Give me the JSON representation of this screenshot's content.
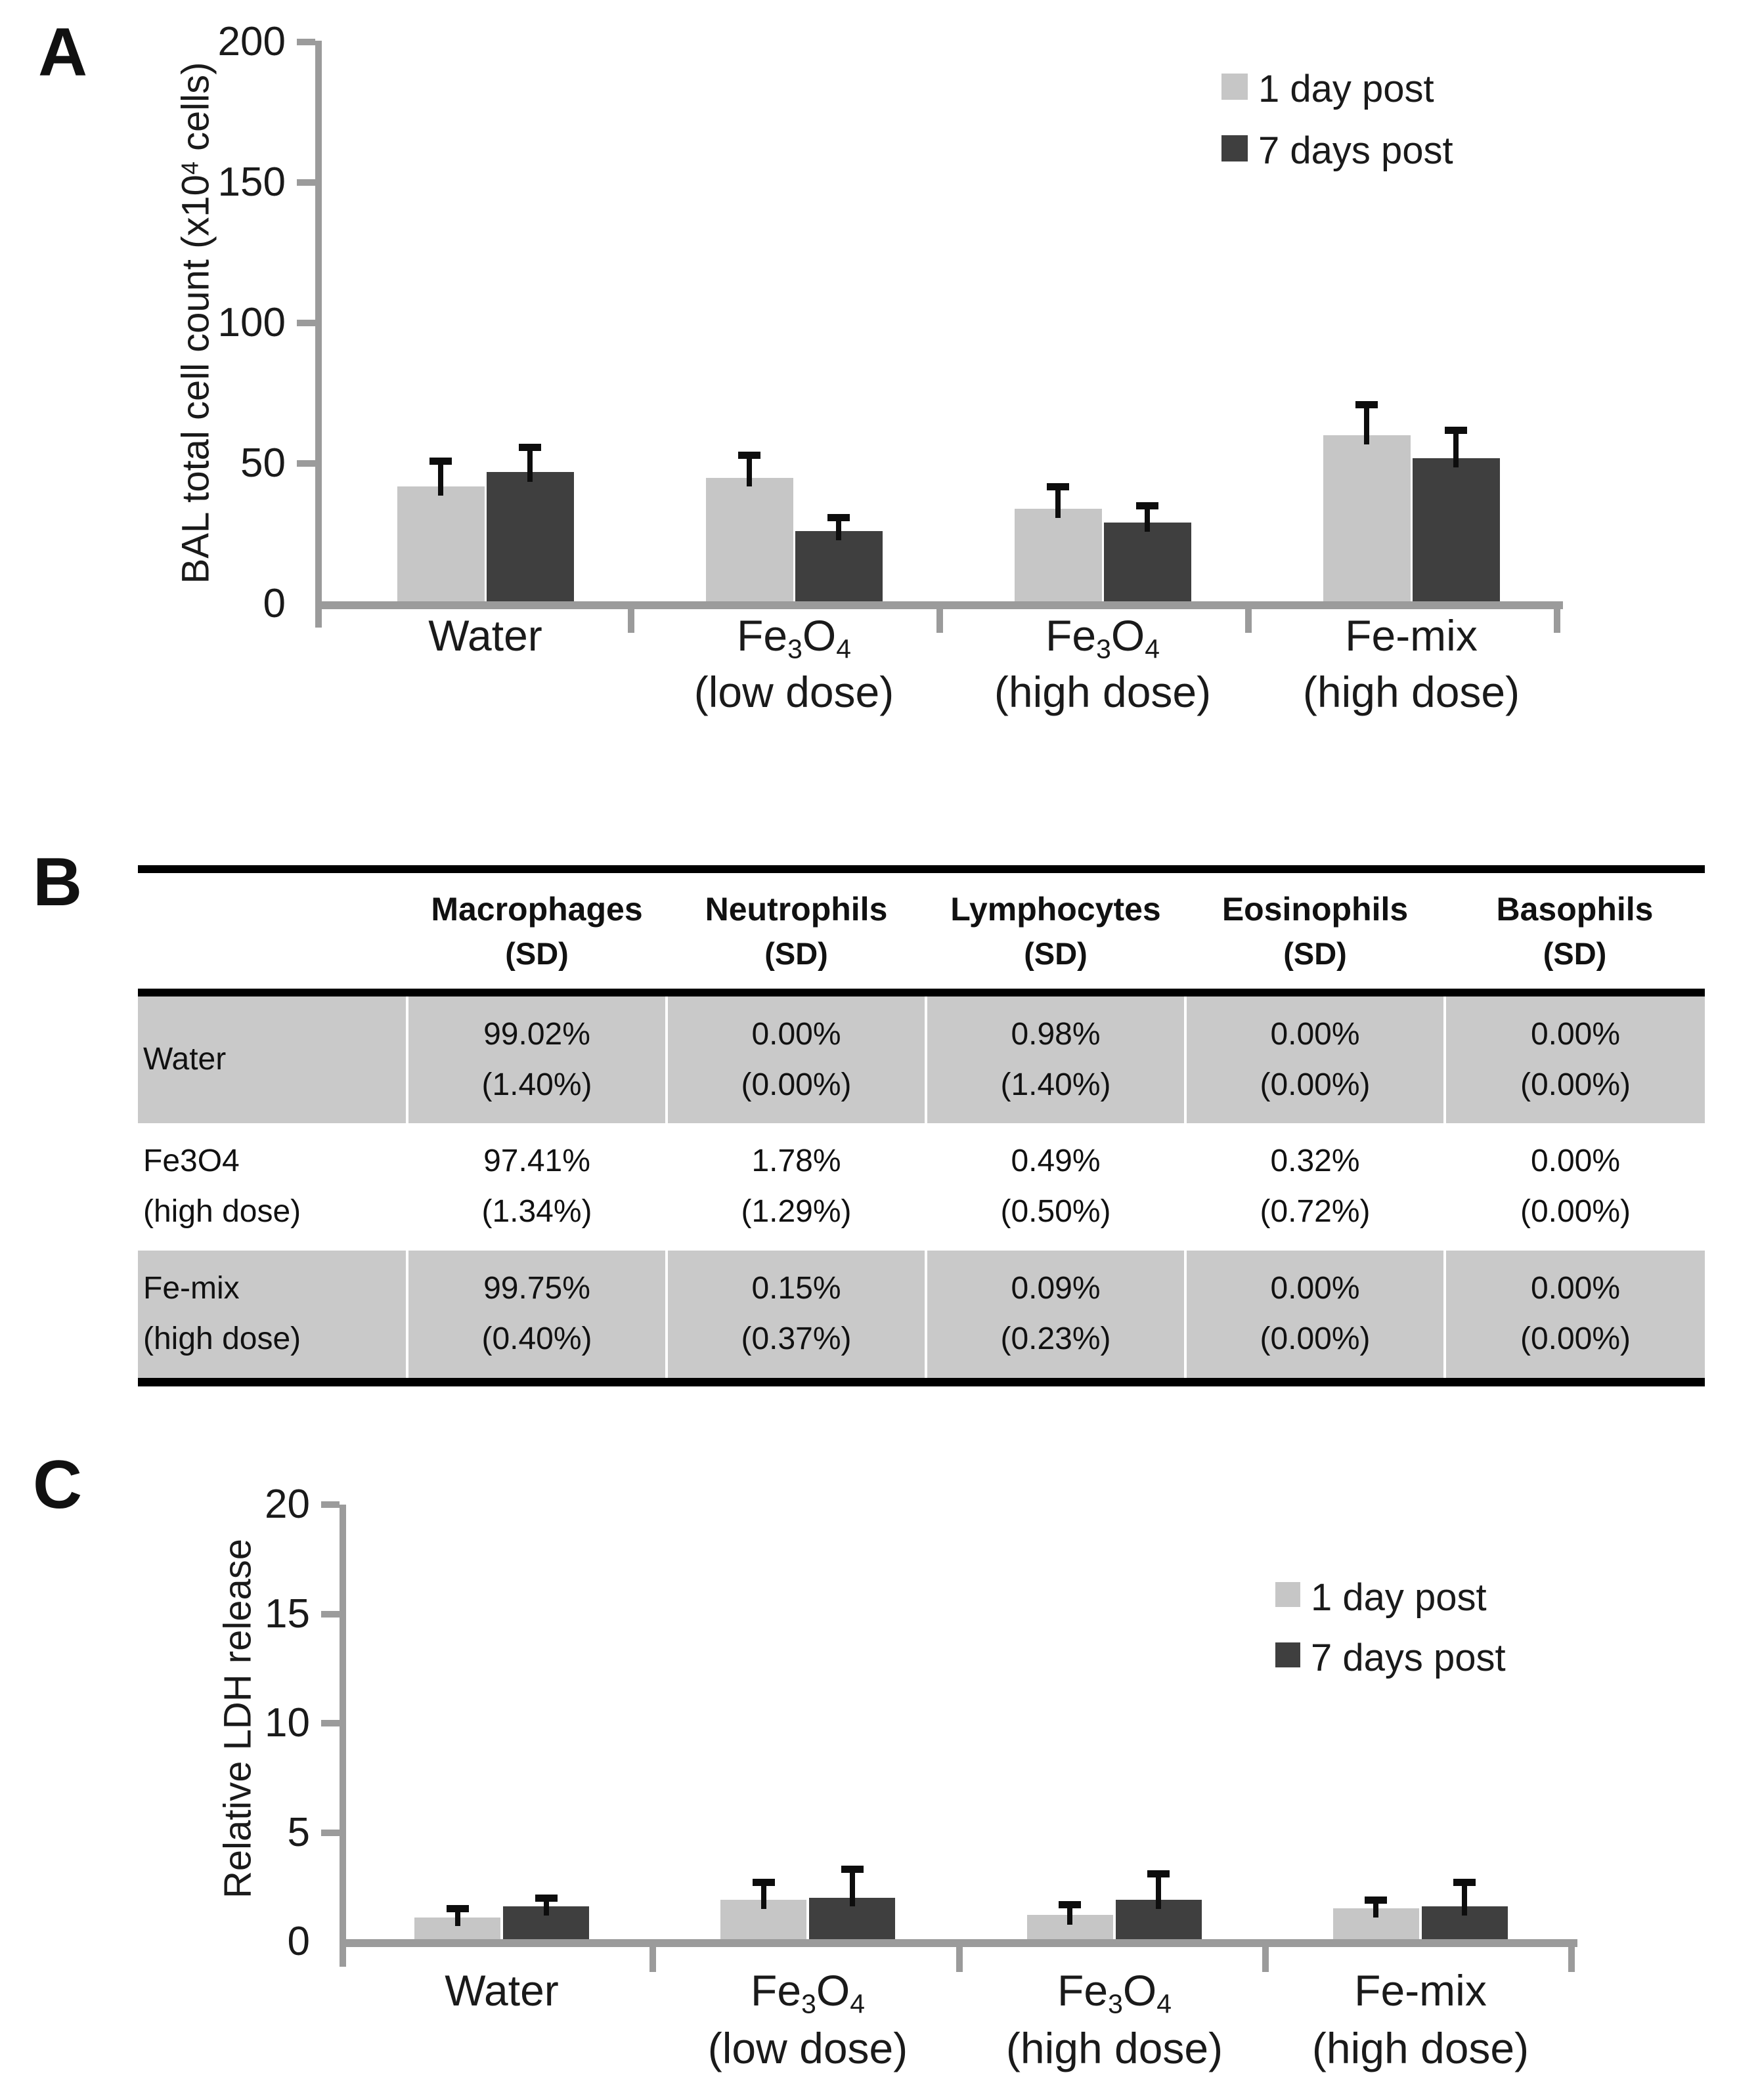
{
  "panels": {
    "a": {
      "letter": "A"
    },
    "b": {
      "letter": "B"
    },
    "c": {
      "letter": "C"
    }
  },
  "chart_data": [
    {
      "id": "A",
      "type": "bar",
      "title": "",
      "ylabel": "BAL total cell count (x10⁴ cells)",
      "ylabel_parts": {
        "pre": "BAL total cell count (x10",
        "sup": "4",
        "post": " cells)"
      },
      "ylim": [
        0,
        200
      ],
      "yticks": [
        0,
        50,
        100,
        150,
        200
      ],
      "grid": false,
      "legend_position": "top-right",
      "categories": [
        "Water",
        "Fe3O4 (low dose)",
        "Fe3O4 (high dose)",
        "Fe-mix (high dose)"
      ],
      "categories_display": [
        {
          "line1": "Water",
          "line2": "",
          "formula": false
        },
        {
          "line1": "Fe3O4",
          "line2": "(low dose)",
          "formula": true
        },
        {
          "line1": "Fe3O4",
          "line2": "(high dose)",
          "formula": true
        },
        {
          "line1": "Fe-mix",
          "line2": "(high dose)",
          "formula": false
        }
      ],
      "series": [
        {
          "name": "1 day post",
          "color": "#c6c6c6",
          "values": [
            41,
            44,
            33,
            59
          ],
          "errors": [
            9,
            8,
            8,
            11
          ]
        },
        {
          "name": "7 days post",
          "color": "#3f3f3f",
          "values": [
            46,
            25,
            28,
            51
          ],
          "errors": [
            9,
            5,
            6,
            10
          ]
        }
      ]
    },
    {
      "id": "C",
      "type": "bar",
      "title": "",
      "ylabel": "Relative LDH release",
      "ylim": [
        0,
        20
      ],
      "yticks": [
        0,
        5,
        10,
        15,
        20
      ],
      "grid": false,
      "legend_position": "top-right",
      "categories": [
        "Water",
        "Fe3O4 (low dose)",
        "Fe3O4 (high dose)",
        "Fe-mix (high dose)"
      ],
      "categories_display": [
        {
          "line1": "Water",
          "line2": "",
          "formula": false
        },
        {
          "line1": "Fe3O4",
          "line2": "(low dose)",
          "formula": true
        },
        {
          "line1": "Fe3O4",
          "line2": "(high dose)",
          "formula": true
        },
        {
          "line1": "Fe-mix",
          "line2": "(high dose)",
          "formula": false
        }
      ],
      "series": [
        {
          "name": "1 day post",
          "color": "#c6c6c6",
          "values": [
            1.0,
            1.8,
            1.1,
            1.4
          ],
          "errors": [
            0.4,
            0.8,
            0.5,
            0.4
          ]
        },
        {
          "name": "7 days post",
          "color": "#3f3f3f",
          "values": [
            1.5,
            1.9,
            1.8,
            1.5
          ],
          "errors": [
            0.4,
            1.3,
            1.2,
            1.1
          ]
        }
      ]
    }
  ],
  "table": {
    "columns": [
      {
        "title": "Macrophages",
        "sub": "(SD)"
      },
      {
        "title": "Neutrophils",
        "sub": "(SD)"
      },
      {
        "title": "Lymphocytes",
        "sub": "(SD)"
      },
      {
        "title": "Eosinophils",
        "sub": "(SD)"
      },
      {
        "title": "Basophils",
        "sub": "(SD)"
      }
    ],
    "rows": [
      {
        "label": "Water",
        "label2": "",
        "shaded": true,
        "cells": [
          [
            "99.02%",
            "(1.40%)"
          ],
          [
            "0.00%",
            "(0.00%)"
          ],
          [
            "0.98%",
            "(1.40%)"
          ],
          [
            "0.00%",
            "(0.00%)"
          ],
          [
            "0.00%",
            "(0.00%)"
          ]
        ]
      },
      {
        "label": "Fe3O4",
        "label2": "(high dose)",
        "shaded": false,
        "cells": [
          [
            "97.41%",
            "(1.34%)"
          ],
          [
            "1.78%",
            "(1.29%)"
          ],
          [
            "0.49%",
            "(0.50%)"
          ],
          [
            "0.32%",
            "(0.72%)"
          ],
          [
            "0.00%",
            "(0.00%)"
          ]
        ]
      },
      {
        "label": "Fe-mix",
        "label2": "(high dose)",
        "shaded": true,
        "cells": [
          [
            "99.75%",
            "(0.40%)"
          ],
          [
            "0.15%",
            "(0.37%)"
          ],
          [
            "0.09%",
            "(0.23%)"
          ],
          [
            "0.00%",
            "(0.00%)"
          ],
          [
            "0.00%",
            "(0.00%)"
          ]
        ]
      }
    ]
  }
}
